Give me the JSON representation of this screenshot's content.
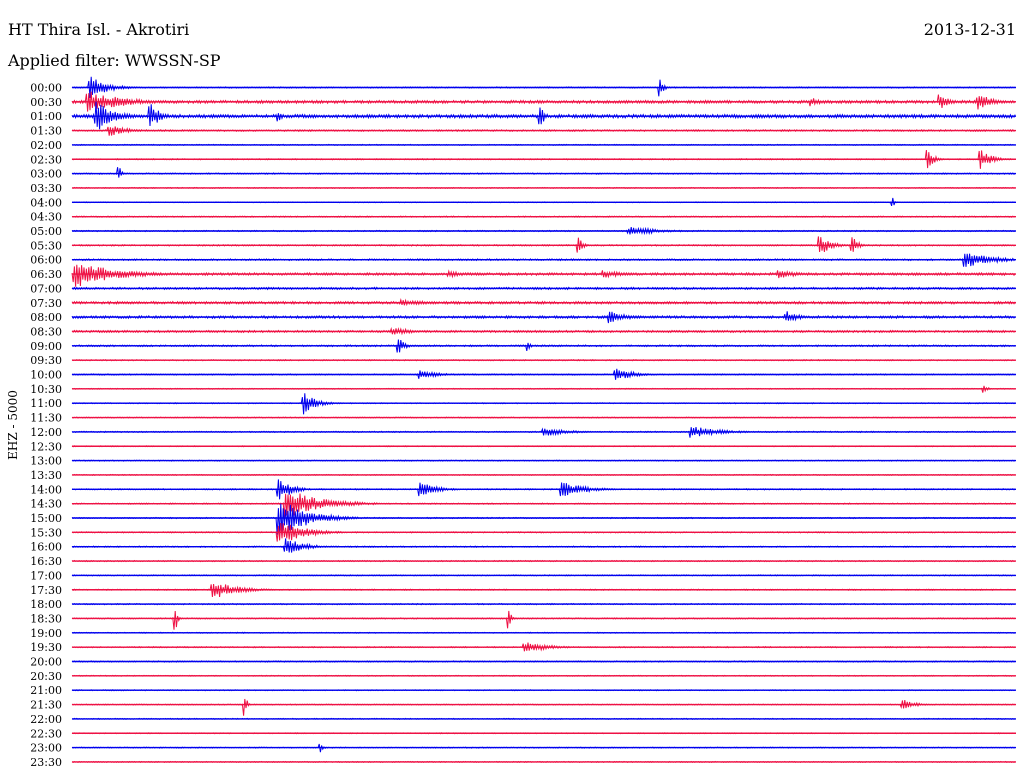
{
  "station": "HT Thira Isl. - Akrotiri",
  "date": "2013-12-31",
  "filter": "Applied filter: WWSSN-SP",
  "channel": "EHZ - 5000",
  "colors": {
    "even_rows": "#0000ee",
    "odd_rows": "#ee1144"
  },
  "chart_data": {
    "type": "line",
    "title": "HT Thira Isl. - Akrotiri",
    "subtitle": "Applied filter: WWSSN-SP",
    "ylabel": "EHZ - 5000",
    "row_labels": [
      "00:00",
      "00:30",
      "01:00",
      "01:30",
      "02:00",
      "02:30",
      "03:00",
      "03:30",
      "04:00",
      "04:30",
      "05:00",
      "05:30",
      "06:00",
      "06:30",
      "07:00",
      "07:30",
      "08:00",
      "08:30",
      "09:00",
      "09:30",
      "10:00",
      "10:30",
      "11:00",
      "11:30",
      "12:00",
      "12:30",
      "13:00",
      "13:30",
      "14:00",
      "14:30",
      "15:00",
      "15:30",
      "16:00",
      "16:30",
      "17:00",
      "17:30",
      "18:00",
      "18:30",
      "19:00",
      "19:30",
      "20:00",
      "20:30",
      "21:00",
      "21:30",
      "22:00",
      "22:30",
      "23:00",
      "23:30"
    ],
    "row_minutes": 30,
    "noise_level": [
      0.6,
      1.4,
      1.6,
      0.8,
      0.5,
      0.6,
      0.6,
      0.5,
      0.4,
      0.6,
      0.6,
      0.7,
      0.8,
      1.2,
      1.0,
      1.2,
      1.2,
      1.0,
      0.8,
      0.6,
      0.6,
      0.5,
      0.5,
      0.5,
      0.6,
      0.5,
      0.5,
      0.5,
      0.6,
      0.6,
      0.6,
      0.6,
      0.6,
      0.6,
      0.5,
      0.6,
      0.6,
      0.6,
      0.5,
      0.6,
      0.6,
      0.5,
      0.5,
      0.5,
      0.5,
      0.5,
      0.5,
      0.5
    ],
    "events": [
      {
        "row": 0,
        "minute": 0.6,
        "amp": 12,
        "dur": 1.5
      },
      {
        "row": 0,
        "minute": 18.7,
        "amp": 10,
        "dur": 0.3
      },
      {
        "row": 1,
        "minute": 0.5,
        "amp": 12,
        "dur": 3
      },
      {
        "row": 1,
        "minute": 23.5,
        "amp": 5,
        "dur": 0.8
      },
      {
        "row": 1,
        "minute": 27.6,
        "amp": 8,
        "dur": 0.8
      },
      {
        "row": 1,
        "minute": 28.8,
        "amp": 9,
        "dur": 1.3
      },
      {
        "row": 2,
        "minute": 0.8,
        "amp": 16,
        "dur": 1.5
      },
      {
        "row": 2,
        "minute": 2.5,
        "amp": 14,
        "dur": 0.8
      },
      {
        "row": 2,
        "minute": 6.6,
        "amp": 6,
        "dur": 0.2
      },
      {
        "row": 2,
        "minute": 14.9,
        "amp": 10,
        "dur": 0.4
      },
      {
        "row": 3,
        "minute": 1.2,
        "amp": 6,
        "dur": 1.5
      },
      {
        "row": 5,
        "minute": 27.2,
        "amp": 12,
        "dur": 0.5
      },
      {
        "row": 5,
        "minute": 28.9,
        "amp": 10,
        "dur": 1.0
      },
      {
        "row": 6,
        "minute": 1.5,
        "amp": 8,
        "dur": 0.2
      },
      {
        "row": 8,
        "minute": 26.1,
        "amp": 6,
        "dur": 0.1
      },
      {
        "row": 10,
        "minute": 17.7,
        "amp": 5,
        "dur": 2.5
      },
      {
        "row": 11,
        "minute": 16.1,
        "amp": 8,
        "dur": 0.4
      },
      {
        "row": 11,
        "minute": 23.8,
        "amp": 10,
        "dur": 1.0
      },
      {
        "row": 11,
        "minute": 24.8,
        "amp": 10,
        "dur": 0.5
      },
      {
        "row": 12,
        "minute": 28.4,
        "amp": 8,
        "dur": 2.5
      },
      {
        "row": 13,
        "minute": 0.1,
        "amp": 14,
        "dur": 3.5
      },
      {
        "row": 13,
        "minute": 12.0,
        "amp": 3,
        "dur": 2.0
      },
      {
        "row": 13,
        "minute": 16.9,
        "amp": 4,
        "dur": 2.0
      },
      {
        "row": 13,
        "minute": 22.5,
        "amp": 4,
        "dur": 2.0
      },
      {
        "row": 15,
        "minute": 10.5,
        "amp": 3,
        "dur": 3.0
      },
      {
        "row": 16,
        "minute": 17.1,
        "amp": 6,
        "dur": 1.5
      },
      {
        "row": 16,
        "minute": 22.7,
        "amp": 7,
        "dur": 1.0
      },
      {
        "row": 17,
        "minute": 10.2,
        "amp": 4,
        "dur": 2.0
      },
      {
        "row": 18,
        "minute": 10.4,
        "amp": 8,
        "dur": 0.5
      },
      {
        "row": 18,
        "minute": 14.5,
        "amp": 6,
        "dur": 0.2
      },
      {
        "row": 20,
        "minute": 11.1,
        "amp": 5,
        "dur": 1.5
      },
      {
        "row": 20,
        "minute": 17.3,
        "amp": 7,
        "dur": 1.5
      },
      {
        "row": 21,
        "minute": 29.0,
        "amp": 4,
        "dur": 0.3
      },
      {
        "row": 22,
        "minute": 7.4,
        "amp": 12,
        "dur": 1.0
      },
      {
        "row": 24,
        "minute": 15.0,
        "amp": 5,
        "dur": 2.0
      },
      {
        "row": 24,
        "minute": 19.7,
        "amp": 6,
        "dur": 2.5
      },
      {
        "row": 28,
        "minute": 6.6,
        "amp": 14,
        "dur": 1.0
      },
      {
        "row": 28,
        "minute": 11.1,
        "amp": 7,
        "dur": 1.5
      },
      {
        "row": 28,
        "minute": 15.6,
        "amp": 8,
        "dur": 2.0
      },
      {
        "row": 29,
        "minute": 6.8,
        "amp": 16,
        "dur": 3.0
      },
      {
        "row": 30,
        "minute": 6.6,
        "amp": 20,
        "dur": 2.5
      },
      {
        "row": 31,
        "minute": 6.6,
        "amp": 14,
        "dur": 2.0
      },
      {
        "row": 32,
        "minute": 6.8,
        "amp": 10,
        "dur": 1.5
      },
      {
        "row": 35,
        "minute": 4.5,
        "amp": 10,
        "dur": 2.0
      },
      {
        "row": 37,
        "minute": 3.3,
        "amp": 14,
        "dur": 0.2
      },
      {
        "row": 37,
        "minute": 13.9,
        "amp": 10,
        "dur": 0.2
      },
      {
        "row": 39,
        "minute": 14.4,
        "amp": 6,
        "dur": 2.0
      },
      {
        "row": 43,
        "minute": 5.5,
        "amp": 12,
        "dur": 0.2
      },
      {
        "row": 43,
        "minute": 26.4,
        "amp": 6,
        "dur": 1.0
      },
      {
        "row": 46,
        "minute": 7.9,
        "amp": 7,
        "dur": 0.2
      }
    ]
  }
}
